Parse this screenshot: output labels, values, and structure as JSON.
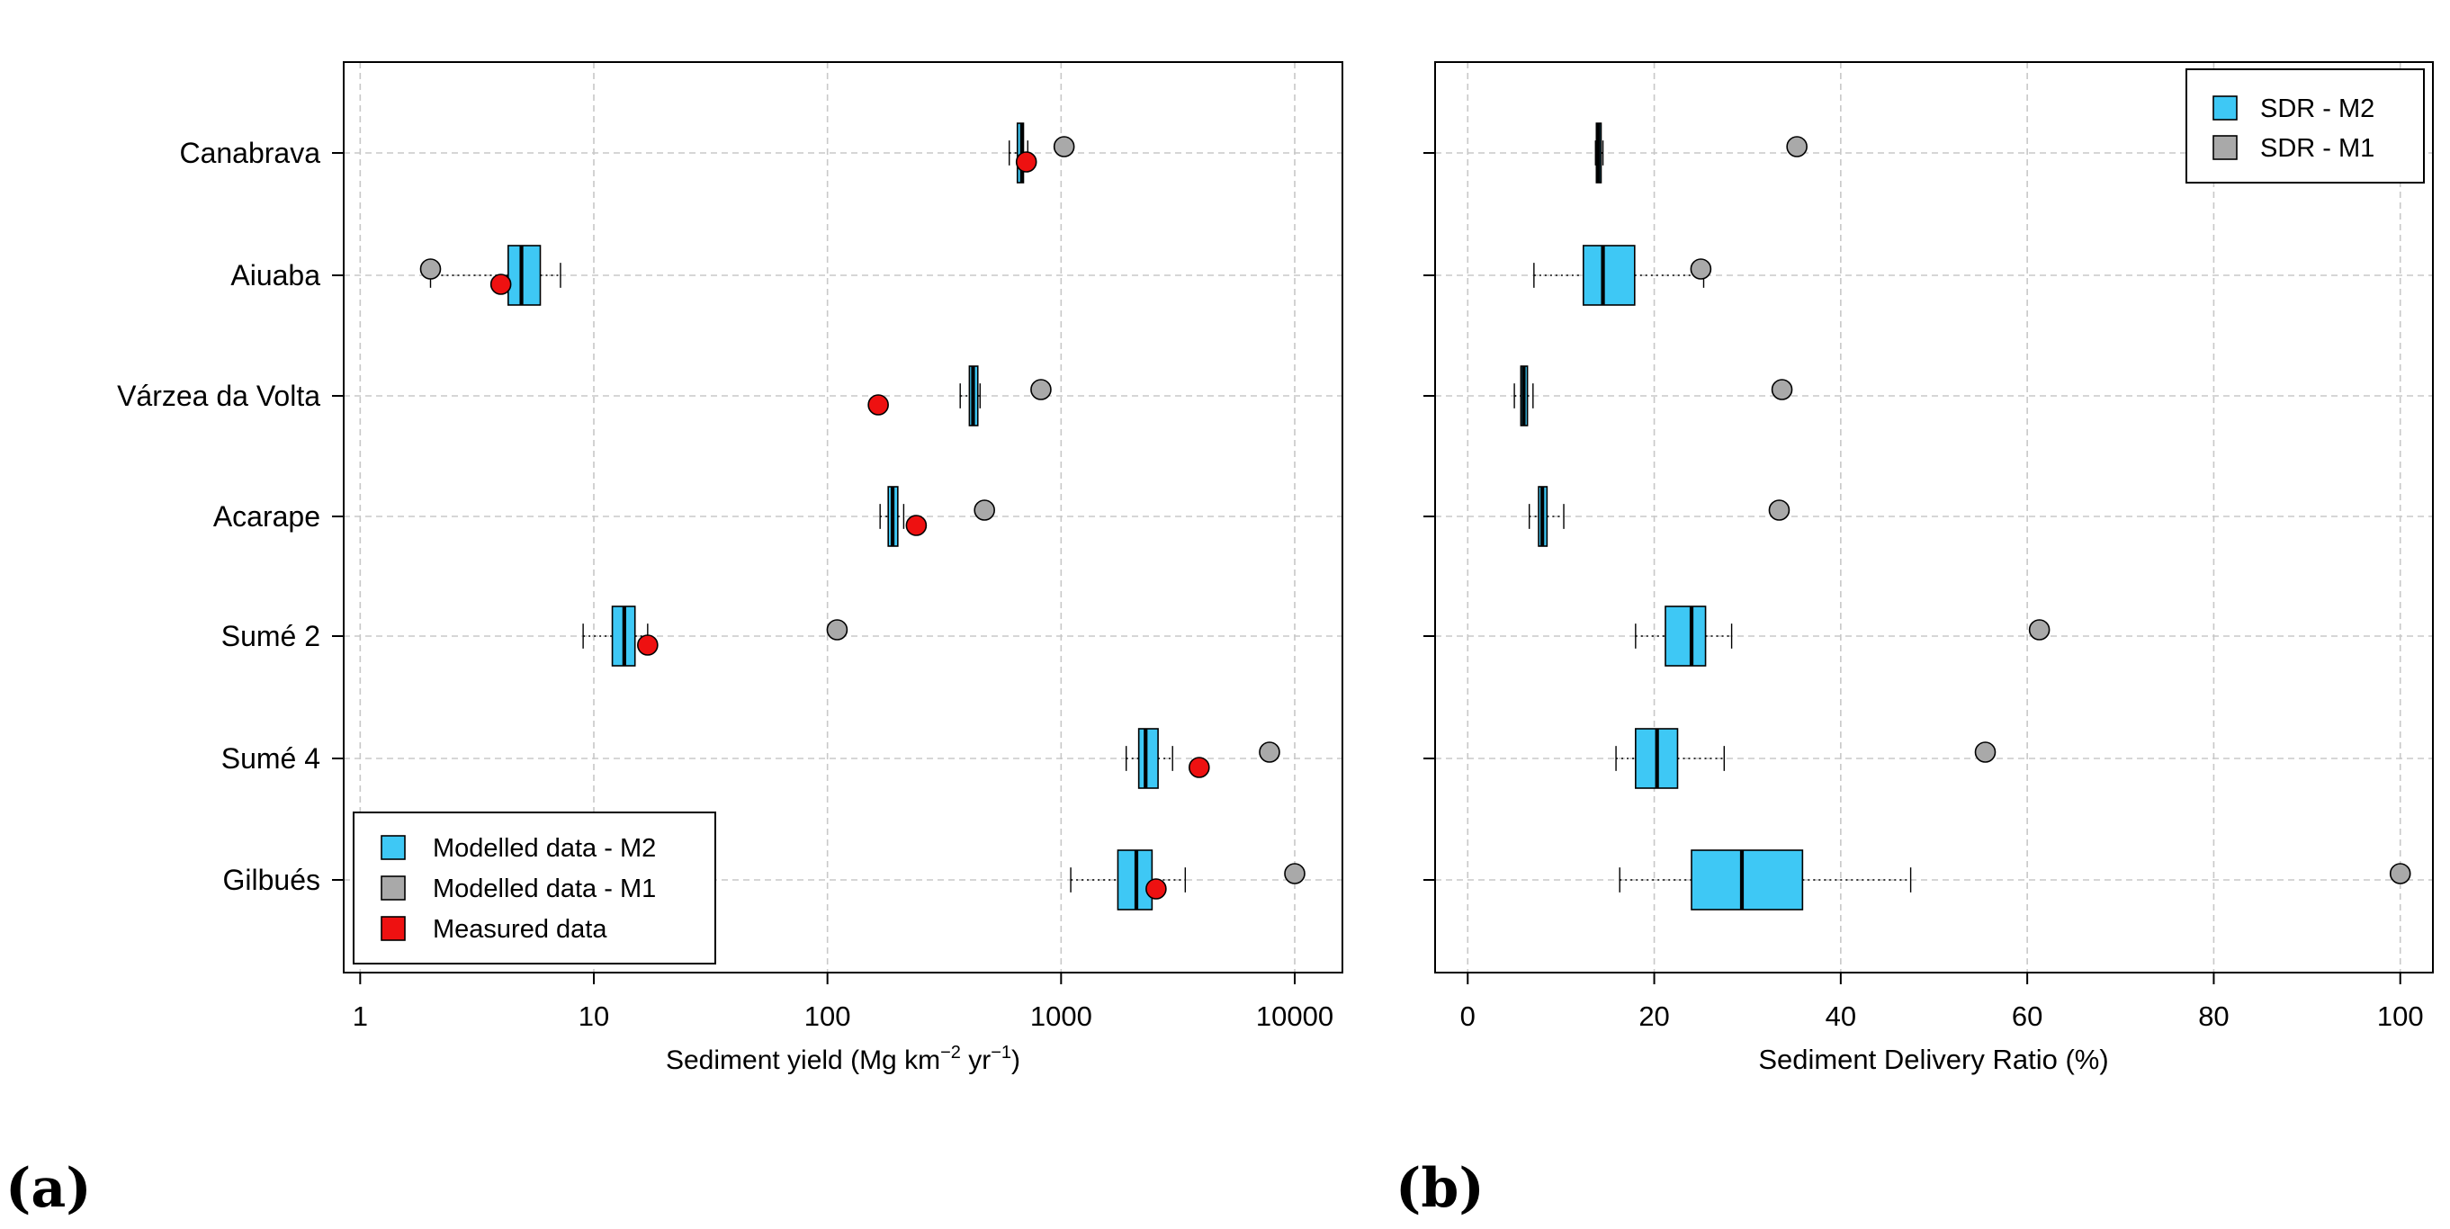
{
  "colors": {
    "m2": "#3ec8f5",
    "m1": "#a9a9a9",
    "measured": "#ee1111",
    "axis": "#000000"
  },
  "chart_data": [
    {
      "panel": "(a)",
      "type": "boxplot",
      "orientation": "horizontal",
      "xscale": "log",
      "xlim": [
        0.85,
        16000
      ],
      "xticks": [
        1,
        10,
        100,
        1000,
        10000
      ],
      "xtick_labels": [
        "1",
        "10",
        "100",
        "1000",
        "10000"
      ],
      "xlabel_main": "Sediment yield (Mg  km",
      "xlabel_sup1": "−2",
      "xlabel_mid": " yr",
      "xlabel_sup2": "−1",
      "xlabel_end": ")",
      "grid": true,
      "legend_position": "bottom-left",
      "legend": [
        "Modelled data - M2",
        "Modelled data - M1",
        "Measured data"
      ],
      "categories": [
        "Canabrava",
        "Aiuaba",
        "Várzea da Volta",
        "Acarape",
        "Sumé 2",
        "Sumé 4",
        "Gilbués"
      ],
      "series": [
        {
          "name": "Modelled data - M2",
          "kind": "box",
          "values": [
            {
              "min": 600,
              "q1": 650,
              "median": 680,
              "q3": 690,
              "max": 720
            },
            {
              "min": 2.0,
              "q1": 4.3,
              "median": 4.9,
              "q3": 5.9,
              "max": 7.2
            },
            {
              "min": 370,
              "q1": 405,
              "median": 420,
              "q3": 440,
              "max": 450
            },
            {
              "min": 168,
              "q1": 182,
              "median": 190,
              "q3": 200,
              "max": 212
            },
            {
              "min": 9,
              "q1": 12,
              "median": 13.5,
              "q3": 15,
              "max": 17
            },
            {
              "min": 1900,
              "q1": 2150,
              "median": 2300,
              "q3": 2600,
              "max": 3000
            },
            {
              "min": 1100,
              "q1": 1750,
              "median": 2100,
              "q3": 2450,
              "max": 3400
            }
          ]
        },
        {
          "name": "Modelled data - M1",
          "kind": "point",
          "values": [
            1030,
            2.0,
            820,
            470,
            110,
            7800,
            10000
          ]
        },
        {
          "name": "Measured data",
          "kind": "point",
          "values": [
            710,
            4.0,
            165,
            240,
            17,
            3900,
            2550
          ]
        }
      ]
    },
    {
      "panel": "(b)",
      "type": "boxplot",
      "orientation": "horizontal",
      "xscale": "linear",
      "xlim": [
        -3.5,
        103.5
      ],
      "xticks": [
        0,
        20,
        40,
        60,
        80,
        100
      ],
      "xtick_labels": [
        "0",
        "20",
        "40",
        "60",
        "80",
        "100"
      ],
      "xlabel": "Sediment Delivery Ratio (%)",
      "grid": true,
      "legend_position": "top-right",
      "legend": [
        "SDR - M2",
        "SDR - M1"
      ],
      "categories": [
        "Canabrava",
        "Aiuaba",
        "Várzea da Volta",
        "Acarape",
        "Sumé 2",
        "Sumé 4",
        "Gilbués"
      ],
      "series": [
        {
          "name": "SDR - M2",
          "kind": "box",
          "values": [
            {
              "min": 13.7,
              "q1": 13.8,
              "median": 14.0,
              "q3": 14.3,
              "max": 14.5
            },
            {
              "min": 7.1,
              "q1": 12.4,
              "median": 14.5,
              "q3": 17.9,
              "max": 25.3
            },
            {
              "min": 5.0,
              "q1": 5.7,
              "median": 6.0,
              "q3": 6.4,
              "max": 7.0
            },
            {
              "min": 6.6,
              "q1": 7.6,
              "median": 8.0,
              "q3": 8.5,
              "max": 10.3
            },
            {
              "min": 18.0,
              "q1": 21.2,
              "median": 24.0,
              "q3": 25.5,
              "max": 28.3
            },
            {
              "min": 15.9,
              "q1": 18.0,
              "median": 20.3,
              "q3": 22.5,
              "max": 27.5
            },
            {
              "min": 16.3,
              "q1": 24.0,
              "median": 29.4,
              "q3": 35.9,
              "max": 47.5
            }
          ]
        },
        {
          "name": "SDR - M1",
          "kind": "point",
          "values": [
            35.3,
            25.0,
            33.7,
            33.4,
            61.3,
            55.5,
            100.0
          ]
        }
      ]
    }
  ],
  "panel_labels": [
    "(a)",
    "(b)"
  ]
}
